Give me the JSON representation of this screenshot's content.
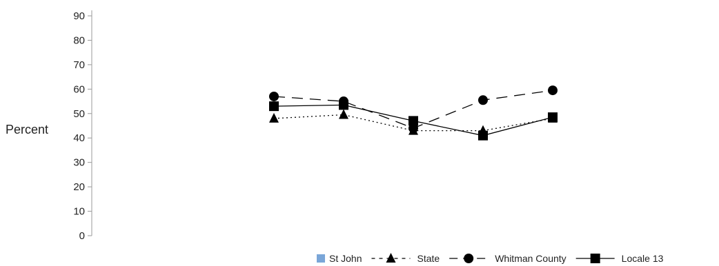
{
  "chart_data": {
    "type": "line",
    "ylabel": "Percent",
    "ylim": [
      0,
      90
    ],
    "yticks": [
      0,
      10,
      20,
      30,
      40,
      50,
      60,
      70,
      80,
      90
    ],
    "x": [
      1,
      2,
      3,
      4,
      5
    ],
    "grid": false,
    "legend_position": "bottom-right",
    "series": [
      {
        "name": "St John",
        "values": [
          null,
          null,
          null,
          null,
          null
        ],
        "color": "#7aa6d8",
        "marker": "square-swatch",
        "dash": "none"
      },
      {
        "name": "State",
        "values": [
          48,
          49.5,
          43,
          43,
          48
        ],
        "color": "#000000",
        "marker": "triangle",
        "dash": "dotted"
      },
      {
        "name": "Whitman County",
        "values": [
          57,
          55,
          44,
          55.5,
          59.5
        ],
        "color": "#000000",
        "marker": "circle",
        "dash": "long-dash"
      },
      {
        "name": "Locale 13",
        "values": [
          53,
          53.5,
          47,
          41,
          48.5
        ],
        "color": "#000000",
        "marker": "square",
        "dash": "solid"
      }
    ]
  }
}
